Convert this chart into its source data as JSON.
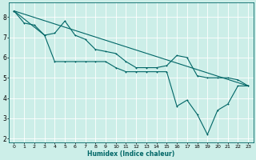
{
  "xlabel": "Humidex (Indice chaleur)",
  "bg_color": "#cceee8",
  "grid_color": "#ffffff",
  "line_color": "#006666",
  "xlim": [
    -0.5,
    23.5
  ],
  "ylim": [
    1.8,
    8.7
  ],
  "xticks": [
    0,
    1,
    2,
    3,
    4,
    5,
    6,
    7,
    8,
    9,
    10,
    11,
    12,
    13,
    14,
    15,
    16,
    17,
    18,
    19,
    20,
    21,
    22,
    23
  ],
  "yticks": [
    2,
    3,
    4,
    5,
    6,
    7,
    8
  ],
  "line1_x": [
    0,
    1,
    2,
    3,
    4,
    5,
    6,
    7,
    8,
    9,
    10,
    11,
    12,
    13,
    14,
    15,
    16,
    17,
    18,
    19,
    20,
    21,
    22,
    23
  ],
  "line1_y": [
    8.3,
    7.7,
    7.6,
    7.1,
    7.2,
    7.8,
    7.1,
    6.9,
    6.4,
    6.3,
    6.2,
    5.8,
    5.5,
    5.5,
    5.5,
    5.6,
    6.1,
    6.0,
    5.1,
    5.0,
    5.0,
    5.0,
    4.9,
    4.6
  ],
  "line2_x": [
    0,
    23
  ],
  "line2_y": [
    8.3,
    4.6
  ],
  "line3_x": [
    0,
    3,
    4,
    5,
    6,
    7,
    8,
    9,
    10,
    11,
    12,
    13,
    14,
    15,
    16,
    17,
    18,
    19,
    20,
    21,
    22,
    23
  ],
  "line3_y": [
    8.3,
    7.1,
    5.8,
    5.8,
    5.8,
    5.8,
    5.8,
    5.8,
    5.5,
    5.3,
    5.3,
    5.3,
    5.3,
    5.3,
    3.6,
    3.9,
    3.2,
    2.2,
    3.4,
    3.7,
    4.6,
    4.6
  ],
  "line3_markers_x": [
    3,
    4,
    5,
    6,
    7,
    8,
    9,
    10,
    11,
    12,
    13,
    14,
    15,
    16,
    17,
    18,
    19,
    20,
    21,
    22,
    23
  ],
  "line3_markers_y": [
    7.1,
    5.8,
    5.8,
    5.8,
    5.8,
    5.8,
    5.8,
    5.5,
    5.3,
    5.3,
    5.3,
    5.3,
    5.3,
    3.6,
    3.9,
    3.2,
    2.2,
    3.4,
    3.7,
    4.6,
    4.6
  ]
}
